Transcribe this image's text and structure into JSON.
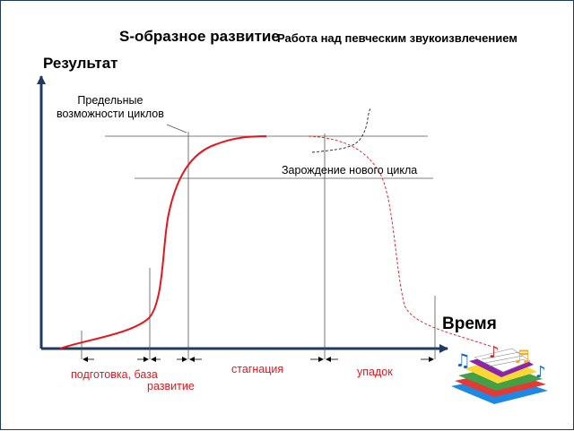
{
  "title": "S-образное развитие",
  "subtitle": "Работа над певческим звукоизвлечением",
  "axis_y_label": "Результат",
  "axis_x_label": "Время",
  "label_limits": [
    "Предельные",
    "возможности циклов"
  ],
  "label_new_cycle": "Зарождение нового цикла",
  "phases": [
    "подготовка, база",
    "развитие",
    "стагнация",
    "упадок"
  ],
  "colors": {
    "curve": "#e8141c",
    "phase_text": "#e8141c",
    "axis": "#1f3864",
    "guide": "#555555",
    "clipart_note": "#c0392b"
  },
  "clipart": "music-books-notes-icon"
}
